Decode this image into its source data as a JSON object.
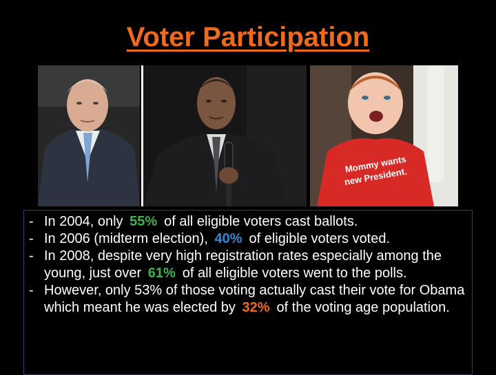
{
  "title": "Voter Participation",
  "photos": [
    {
      "name": "older-man-portrait"
    },
    {
      "name": "man-with-microphone"
    },
    {
      "name": "child-in-red-shirt",
      "shirt_text_line1": "Mommy wants",
      "shirt_text_line2": "new President."
    }
  ],
  "bullets": [
    {
      "dash": "-",
      "pre": "In 2004, only",
      "value": "55%",
      "post": "of all eligible voters cast ballots."
    },
    {
      "dash": "-",
      "pre": "In 2006 (midterm election),",
      "value": "40%",
      "post": "of eligible voters voted."
    },
    {
      "dash": "-",
      "pre": "In 2008, despite very high registration rates especially among the young, just over",
      "value": "61%",
      "post": "of all eligible voters went to the polls."
    },
    {
      "dash": "-",
      "pre": "However, only 53% of those voting actually cast their vote for Obama which meant he was elected by",
      "value": "32%",
      "post": "of the voting age population."
    }
  ],
  "colors": {
    "title": "#f06a1c",
    "value_2004": "#3fb24a",
    "value_2006": "#3a86cf",
    "value_2008": "#3fb24a",
    "value_elected": "#f06a1c"
  }
}
